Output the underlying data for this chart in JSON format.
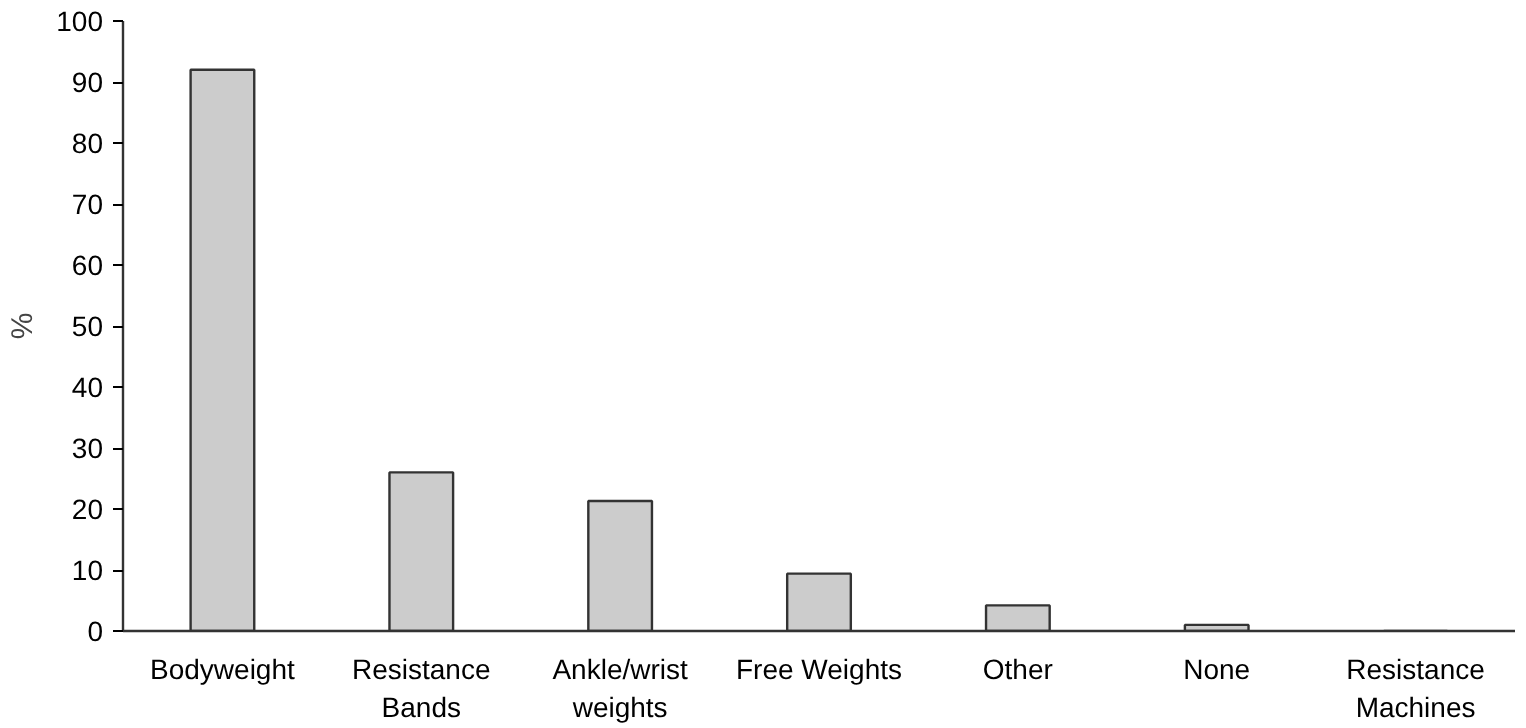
{
  "chart_data": {
    "type": "bar",
    "ylabel": "%",
    "categories": [
      "Bodyweight",
      "Resistance\nBands",
      "Ankle/wrist\nweights",
      "Free Weights",
      "Other",
      "None",
      "Resistance\nMachines"
    ],
    "values": [
      92,
      26,
      21.3,
      9.4,
      4.2,
      1,
      0
    ],
    "color": "#cccccc",
    "ylim": [
      0,
      100
    ],
    "yticks": [
      0,
      10,
      20,
      30,
      40,
      50,
      60,
      70,
      80,
      90,
      100
    ],
    "grid": false
  }
}
